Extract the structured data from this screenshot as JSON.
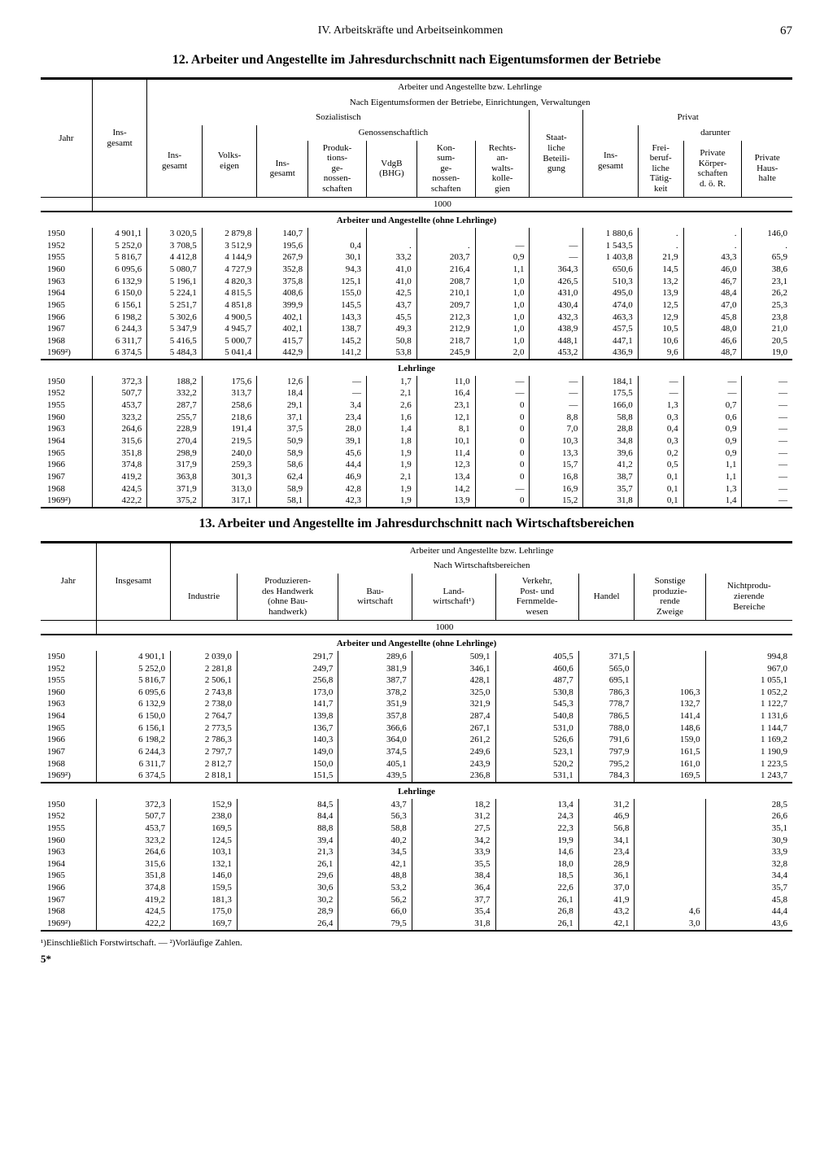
{
  "page": {
    "chapter": "IV. Arbeitskräfte und Arbeitseinkommen",
    "number": "67",
    "signature": "5*"
  },
  "table12": {
    "title": "12. Arbeiter und Angestellte im Jahresdurchschnitt nach Eigentumsformen der Betriebe",
    "header": {
      "span_all": "Arbeiter und Angestellte bzw. Lehrlinge",
      "span_own": "Nach Eigentumsformen der Betriebe, Einrichtungen, Verwaltungen",
      "jahr": "Jahr",
      "insg": "Ins-\ngesamt",
      "soz": "Sozialistisch",
      "priv": "Privat",
      "volks": "Volks-\neigen",
      "genos": "Genossenschaftlich",
      "darunter": "darunter",
      "ins2": "Ins-\ngesamt",
      "ptg": "Produk-\ntions-\nge-\nnossen-\nschaften",
      "vdgb": "VdgB\n(BHG)",
      "kons": "Kon-\nsum-\nge-\nnossen-\nschaften",
      "rak": "Rechts-\nan-\nwalts-\nkolle-\ngien",
      "staat": "Staat-\nliche\nBeteili-\ngung",
      "frei": "Frei-\nberuf-\nliche\nTätig-\nkeit",
      "pkor": "Private\nKörper-\nschaften\nd. ö. R.",
      "haus": "Private\nHaus-\nhalte"
    },
    "unit": "1000",
    "section_a": "Arbeiter und Angestellte (ohne Lehrlinge)",
    "section_b": "Lehrlinge",
    "rows_a": [
      [
        "1950",
        "4 901,1",
        "3 020,5",
        "2 879,8",
        "140,7",
        "",
        "",
        "",
        "",
        "",
        "1 880,6",
        ".",
        ".",
        "146,0"
      ],
      [
        "1952",
        "5 252,0",
        "3 708,5",
        "3 512,9",
        "195,6",
        "0,4",
        ".",
        ".",
        "—",
        "—",
        "1 543,5",
        ".",
        ".",
        "."
      ],
      [
        "1955",
        "5 816,7",
        "4 412,8",
        "4 144,9",
        "267,9",
        "30,1",
        "33,2",
        "203,7",
        "0,9",
        "—",
        "1 403,8",
        "21,9",
        "43,3",
        "65,9"
      ],
      [
        "1960",
        "6 095,6",
        "5 080,7",
        "4 727,9",
        "352,8",
        "94,3",
        "41,0",
        "216,4",
        "1,1",
        "364,3",
        "650,6",
        "14,5",
        "46,0",
        "38,6"
      ],
      [
        "1963",
        "6 132,9",
        "5 196,1",
        "4 820,3",
        "375,8",
        "125,1",
        "41,0",
        "208,7",
        "1,0",
        "426,5",
        "510,3",
        "13,2",
        "46,7",
        "23,1"
      ],
      [
        "1964",
        "6 150,0",
        "5 224,1",
        "4 815,5",
        "408,6",
        "155,0",
        "42,5",
        "210,1",
        "1,0",
        "431,0",
        "495,0",
        "13,9",
        "48,4",
        "26,2"
      ],
      [
        "1965",
        "6 156,1",
        "5 251,7",
        "4 851,8",
        "399,9",
        "145,5",
        "43,7",
        "209,7",
        "1,0",
        "430,4",
        "474,0",
        "12,5",
        "47,0",
        "25,3"
      ],
      [
        "1966",
        "6 198,2",
        "5 302,6",
        "4 900,5",
        "402,1",
        "143,3",
        "45,5",
        "212,3",
        "1,0",
        "432,3",
        "463,3",
        "12,9",
        "45,8",
        "23,8"
      ],
      [
        "1967",
        "6 244,3",
        "5 347,9",
        "4 945,7",
        "402,1",
        "138,7",
        "49,3",
        "212,9",
        "1,0",
        "438,9",
        "457,5",
        "10,5",
        "48,0",
        "21,0"
      ],
      [
        "1968",
        "6 311,7",
        "5 416,5",
        "5 000,7",
        "415,7",
        "145,2",
        "50,8",
        "218,7",
        "1,0",
        "448,1",
        "447,1",
        "10,6",
        "46,6",
        "20,5"
      ],
      [
        "1969²)",
        "6 374,5",
        "5 484,3",
        "5 041,4",
        "442,9",
        "141,2",
        "53,8",
        "245,9",
        "2,0",
        "453,2",
        "436,9",
        "9,6",
        "48,7",
        "19,0"
      ]
    ],
    "rows_b": [
      [
        "1950",
        "372,3",
        "188,2",
        "175,6",
        "12,6",
        "—",
        "1,7",
        "11,0",
        "—",
        "—",
        "184,1",
        "—",
        "—",
        "—"
      ],
      [
        "1952",
        "507,7",
        "332,2",
        "313,7",
        "18,4",
        "—",
        "2,1",
        "16,4",
        "—",
        "—",
        "175,5",
        "—",
        "—",
        "—"
      ],
      [
        "1955",
        "453,7",
        "287,7",
        "258,6",
        "29,1",
        "3,4",
        "2,6",
        "23,1",
        "0",
        "—",
        "166,0",
        "1,3",
        "0,7",
        "—"
      ],
      [
        "1960",
        "323,2",
        "255,7",
        "218,6",
        "37,1",
        "23,4",
        "1,6",
        "12,1",
        "0",
        "8,8",
        "58,8",
        "0,3",
        "0,6",
        "—"
      ],
      [
        "1963",
        "264,6",
        "228,9",
        "191,4",
        "37,5",
        "28,0",
        "1,4",
        "8,1",
        "0",
        "7,0",
        "28,8",
        "0,4",
        "0,9",
        "—"
      ],
      [
        "1964",
        "315,6",
        "270,4",
        "219,5",
        "50,9",
        "39,1",
        "1,8",
        "10,1",
        "0",
        "10,3",
        "34,8",
        "0,3",
        "0,9",
        "—"
      ],
      [
        "1965",
        "351,8",
        "298,9",
        "240,0",
        "58,9",
        "45,6",
        "1,9",
        "11,4",
        "0",
        "13,3",
        "39,6",
        "0,2",
        "0,9",
        "—"
      ],
      [
        "1966",
        "374,8",
        "317,9",
        "259,3",
        "58,6",
        "44,4",
        "1,9",
        "12,3",
        "0",
        "15,7",
        "41,2",
        "0,5",
        "1,1",
        "—"
      ],
      [
        "1967",
        "419,2",
        "363,8",
        "301,3",
        "62,4",
        "46,9",
        "2,1",
        "13,4",
        "0",
        "16,8",
        "38,7",
        "0,1",
        "1,1",
        "—"
      ],
      [
        "1968",
        "424,5",
        "371,9",
        "313,0",
        "58,9",
        "42,8",
        "1,9",
        "14,2",
        "—",
        "16,9",
        "35,7",
        "0,1",
        "1,3",
        "—"
      ],
      [
        "1969²)",
        "422,2",
        "375,2",
        "317,1",
        "58,1",
        "42,3",
        "1,9",
        "13,9",
        "0",
        "15,2",
        "31,8",
        "0,1",
        "1,4",
        "—"
      ]
    ]
  },
  "table13": {
    "title": "13. Arbeiter und Angestellte im Jahresdurchschnitt nach Wirtschaftsbereichen",
    "header": {
      "span_all": "Arbeiter und Angestellte bzw. Lehrlinge",
      "span_sec": "Nach Wirtschaftsbereichen",
      "jahr": "Jahr",
      "insg": "Insgesamt",
      "ind": "Industrie",
      "hand": "Produzieren-\ndes Handwerk\n(ohne Bau-\nhandwerk)",
      "bau": "Bau-\nwirtschaft",
      "land": "Land-\nwirtschaft¹)",
      "verk": "Verkehr,\nPost- und\nFernmelde-\nwesen",
      "handel": "Handel",
      "sonst": "Sonstige\nproduzie-\nrende\nZweige",
      "nicht": "Nichtprodu-\nzierende\nBereiche"
    },
    "unit": "1000",
    "section_a": "Arbeiter und Angestellte (ohne Lehrlinge)",
    "section_b": "Lehrlinge",
    "rows_a": [
      [
        "1950",
        "4 901,1",
        "2 039,0",
        "291,7",
        "289,6",
        "509,1",
        "405,5",
        "371,5",
        "",
        "994,8"
      ],
      [
        "1952",
        "5 252,0",
        "2 281,8",
        "249,7",
        "381,9",
        "346,1",
        "460,6",
        "565,0",
        "",
        "967,0"
      ],
      [
        "1955",
        "5 816,7",
        "2 506,1",
        "256,8",
        "387,7",
        "428,1",
        "487,7",
        "695,1",
        "",
        "1 055,1"
      ],
      [
        "1960",
        "6 095,6",
        "2 743,8",
        "173,0",
        "378,2",
        "325,0",
        "530,8",
        "786,3",
        "106,3",
        "1 052,2"
      ],
      [
        "1963",
        "6 132,9",
        "2 738,0",
        "141,7",
        "351,9",
        "321,9",
        "545,3",
        "778,7",
        "132,7",
        "1 122,7"
      ],
      [
        "1964",
        "6 150,0",
        "2 764,7",
        "139,8",
        "357,8",
        "287,4",
        "540,8",
        "786,5",
        "141,4",
        "1 131,6"
      ],
      [
        "1965",
        "6 156,1",
        "2 773,5",
        "136,7",
        "366,6",
        "267,1",
        "531,0",
        "788,0",
        "148,6",
        "1 144,7"
      ],
      [
        "1966",
        "6 198,2",
        "2 786,3",
        "140,3",
        "364,0",
        "261,2",
        "526,6",
        "791,6",
        "159,0",
        "1 169,2"
      ],
      [
        "1967",
        "6 244,3",
        "2 797,7",
        "149,0",
        "374,5",
        "249,6",
        "523,1",
        "797,9",
        "161,5",
        "1 190,9"
      ],
      [
        "1968",
        "6 311,7",
        "2 812,7",
        "150,0",
        "405,1",
        "243,9",
        "520,2",
        "795,2",
        "161,0",
        "1 223,5"
      ],
      [
        "1969²)",
        "6 374,5",
        "2 818,1",
        "151,5",
        "439,5",
        "236,8",
        "531,1",
        "784,3",
        "169,5",
        "1 243,7"
      ]
    ],
    "rows_b": [
      [
        "1950",
        "372,3",
        "152,9",
        "84,5",
        "43,7",
        "18,2",
        "13,4",
        "31,2",
        "",
        "28,5"
      ],
      [
        "1952",
        "507,7",
        "238,0",
        "84,4",
        "56,3",
        "31,2",
        "24,3",
        "46,9",
        "",
        "26,6"
      ],
      [
        "1955",
        "453,7",
        "169,5",
        "88,8",
        "58,8",
        "27,5",
        "22,3",
        "56,8",
        "",
        "35,1"
      ],
      [
        "1960",
        "323,2",
        "124,5",
        "39,4",
        "40,2",
        "34,2",
        "19,9",
        "34,1",
        "",
        "30,9"
      ],
      [
        "1963",
        "264,6",
        "103,1",
        "21,3",
        "34,5",
        "33,9",
        "14,6",
        "23,4",
        "",
        "33,9"
      ],
      [
        "1964",
        "315,6",
        "132,1",
        "26,1",
        "42,1",
        "35,5",
        "18,0",
        "28,9",
        "",
        "32,8"
      ],
      [
        "1965",
        "351,8",
        "146,0",
        "29,6",
        "48,8",
        "38,4",
        "18,5",
        "36,1",
        "",
        "34,4"
      ],
      [
        "1966",
        "374,8",
        "159,5",
        "30,6",
        "53,2",
        "36,4",
        "22,6",
        "37,0",
        "",
        "35,7"
      ],
      [
        "1967",
        "419,2",
        "181,3",
        "30,2",
        "56,2",
        "37,7",
        "26,1",
        "41,9",
        "",
        "45,8"
      ],
      [
        "1968",
        "424,5",
        "175,0",
        "28,9",
        "66,0",
        "35,4",
        "26,8",
        "43,2",
        "4,6",
        "44,4"
      ],
      [
        "1969²)",
        "422,2",
        "169,7",
        "26,4",
        "79,5",
        "31,8",
        "26,1",
        "42,1",
        "3,0",
        "43,6"
      ]
    ]
  },
  "footnotes": "¹)Einschließlich Forstwirtschaft. — ²)Vorläufige Zahlen."
}
